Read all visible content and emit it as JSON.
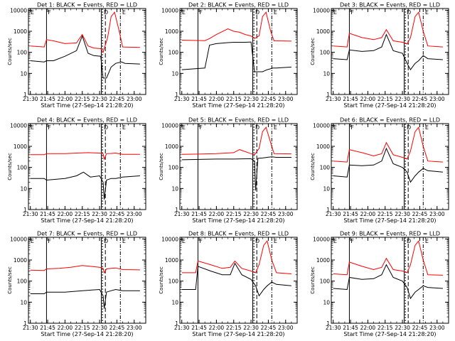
{
  "figure": {
    "xlabel_template": "Start Time (27-Sep-14 21:28:20)",
    "ylabel": "Counts/sec"
  },
  "colors": {
    "events": "#000000",
    "lld": "#ff0000"
  },
  "chart_data": [
    {
      "type": "line",
      "title": "Det 1: BLACK = Events, RED = LLD",
      "xlabel": "Start Time (27-Sep-14 21:28:20)",
      "ylabel": "Counts/sec",
      "y_scale": "log",
      "ylim": [
        1,
        12000
      ],
      "x_ticks": [
        "21:30",
        "21:45",
        "22:00",
        "22:15",
        "22:30",
        "22:45",
        "23:00"
      ],
      "y_ticks": [
        "1",
        "10",
        "100",
        "1000",
        "10000"
      ],
      "markers": [
        "E",
        "F",
        "D",
        "E"
      ],
      "series": [
        {
          "name": "Events",
          "x": [
            "21:30",
            "21:42",
            "21:44",
            "21:50",
            "22:00",
            "22:10",
            "22:15",
            "22:20",
            "22:25",
            "22:31",
            "22:33",
            "22:36",
            "22:40",
            "22:44",
            "22:49",
            "22:52",
            "23:05"
          ],
          "values": [
            40,
            35,
            40,
            40,
            65,
            120,
            600,
            90,
            70,
            65,
            6,
            6,
            20,
            30,
            35,
            30,
            28
          ]
        },
        {
          "name": "LLD",
          "x": [
            "21:30",
            "21:42",
            "21:44",
            "21:50",
            "22:00",
            "22:10",
            "22:15",
            "22:20",
            "22:25",
            "22:31",
            "22:33",
            "22:37",
            "22:40",
            "22:43",
            "22:47",
            "22:50",
            "23:05"
          ],
          "values": [
            200,
            180,
            400,
            350,
            260,
            280,
            700,
            200,
            160,
            150,
            100,
            500,
            5000,
            8000,
            1000,
            180,
            170
          ]
        }
      ]
    },
    {
      "type": "line",
      "title": "Det 2: BLACK = Events, RED = LLD",
      "xlabel": "Start Time (27-Sep-14 21:28:20)",
      "ylabel": "Counts/sec",
      "y_scale": "log",
      "ylim": [
        1,
        12000
      ],
      "x_ticks": [
        "21:30",
        "21:45",
        "22:00",
        "22:15",
        "22:30",
        "22:45",
        "23:00"
      ],
      "y_ticks": [
        "1",
        "10",
        "100",
        "1000",
        "10000"
      ],
      "markers": [
        "E",
        "F",
        "D",
        "E"
      ],
      "series": [
        {
          "name": "Events",
          "x": [
            "21:30",
            "21:50",
            "21:54",
            "22:00",
            "22:10",
            "22:15",
            "22:25",
            "22:30",
            "22:33",
            "22:36",
            "22:40",
            "22:44",
            "22:49",
            "22:52",
            "23:05"
          ],
          "values": [
            15,
            18,
            220,
            260,
            290,
            300,
            300,
            310,
            12,
            12,
            12,
            15,
            18,
            18,
            20
          ]
        },
        {
          "name": "LLD",
          "x": [
            "21:30",
            "21:50",
            "21:54",
            "22:00",
            "22:10",
            "22:15",
            "22:20",
            "22:25",
            "22:30",
            "22:33",
            "22:37",
            "22:40",
            "22:43",
            "22:47",
            "22:50",
            "23:05"
          ],
          "values": [
            380,
            360,
            450,
            700,
            1300,
            1000,
            900,
            700,
            600,
            450,
            600,
            5000,
            8000,
            1000,
            350,
            340
          ]
        }
      ]
    },
    {
      "type": "line",
      "title": "Det 3: BLACK = Events, RED = LLD",
      "xlabel": "Start Time (27-Sep-14 21:28:20)",
      "ylabel": "Counts/sec",
      "y_scale": "log",
      "ylim": [
        1,
        12000
      ],
      "x_ticks": [
        "21:30",
        "21:45",
        "22:00",
        "22:15",
        "22:30",
        "22:45",
        "23:00"
      ],
      "y_ticks": [
        "1",
        "10",
        "100",
        "1000",
        "10000"
      ],
      "markers": [
        "E",
        "F",
        "D",
        "E"
      ],
      "series": [
        {
          "name": "Events",
          "x": [
            "21:30",
            "21:42",
            "21:44",
            "21:55",
            "22:05",
            "22:12",
            "22:16",
            "22:22",
            "22:30",
            "22:34",
            "22:37",
            "22:41",
            "22:44",
            "22:48",
            "22:52",
            "23:05"
          ],
          "values": [
            50,
            45,
            130,
            110,
            120,
            180,
            700,
            120,
            90,
            30,
            15,
            30,
            40,
            70,
            50,
            45
          ]
        },
        {
          "name": "LLD",
          "x": [
            "21:30",
            "21:42",
            "21:44",
            "21:55",
            "22:05",
            "22:12",
            "22:16",
            "22:22",
            "22:30",
            "22:34",
            "22:37",
            "22:41",
            "22:44",
            "22:48",
            "22:52",
            "23:05"
          ],
          "values": [
            200,
            180,
            800,
            500,
            400,
            500,
            1200,
            350,
            300,
            250,
            500,
            5000,
            8000,
            1000,
            200,
            180
          ]
        }
      ]
    },
    {
      "type": "line",
      "title": "Det 4: BLACK = Events, RED = LLD",
      "xlabel": "Start Time (27-Sep-14 21:28:20)",
      "ylabel": "Counts/sec",
      "y_scale": "log",
      "ylim": [
        1,
        12000
      ],
      "x_ticks": [
        "21:30",
        "21:45",
        "22:00",
        "22:15",
        "22:30",
        "22:45",
        "23:00"
      ],
      "y_ticks": [
        "1",
        "10",
        "100",
        "1000",
        "10000"
      ],
      "markers": [
        "E",
        "F",
        "D",
        "E"
      ],
      "series": [
        {
          "name": "Events",
          "x": [
            "21:30",
            "21:42",
            "21:44",
            "22:00",
            "22:10",
            "22:16",
            "22:22",
            "22:30",
            "22:33",
            "22:34",
            "22:36",
            "22:40",
            "22:44",
            "22:50",
            "23:05"
          ],
          "values": [
            30,
            30,
            25,
            30,
            40,
            60,
            35,
            40,
            20,
            3,
            25,
            30,
            30,
            35,
            40
          ]
        },
        {
          "name": "LLD",
          "x": [
            "21:30",
            "21:42",
            "21:44",
            "22:00",
            "22:10",
            "22:20",
            "22:30",
            "22:33",
            "22:34",
            "22:36",
            "22:40",
            "22:44",
            "22:50",
            "23:05"
          ],
          "values": [
            400,
            400,
            450,
            450,
            480,
            500,
            480,
            450,
            250,
            450,
            460,
            480,
            420,
            420
          ]
        }
      ]
    },
    {
      "type": "line",
      "title": "Det 5: BLACK = Events, RED = LLD",
      "xlabel": "Start Time (27-Sep-14 21:28:20)",
      "ylabel": "Counts/sec",
      "y_scale": "log",
      "ylim": [
        1,
        12000
      ],
      "x_ticks": [
        "21:30",
        "21:45",
        "22:00",
        "22:15",
        "22:30",
        "22:45",
        "23:00"
      ],
      "y_ticks": [
        "1",
        "10",
        "100",
        "1000",
        "10000"
      ],
      "markers": [
        "E",
        "F",
        "D",
        "E"
      ],
      "series": [
        {
          "name": "Events",
          "x": [
            "21:30",
            "21:45",
            "22:00",
            "22:15",
            "22:30",
            "22:33",
            "22:34",
            "22:36",
            "22:40",
            "22:44",
            "22:48",
            "22:52",
            "23:05"
          ],
          "values": [
            230,
            240,
            250,
            250,
            260,
            200,
            8,
            270,
            280,
            300,
            320,
            300,
            300
          ]
        },
        {
          "name": "LLD",
          "x": [
            "21:30",
            "21:45",
            "22:00",
            "22:15",
            "22:20",
            "22:30",
            "22:33",
            "22:37",
            "22:40",
            "22:43",
            "22:47",
            "22:50",
            "23:05"
          ],
          "values": [
            420,
            430,
            450,
            500,
            700,
            450,
            400,
            800,
            5000,
            8000,
            1500,
            450,
            440
          ]
        }
      ]
    },
    {
      "type": "line",
      "title": "Det 6: BLACK = Events, RED = LLD",
      "xlabel": "Start Time (27-Sep-14 21:28:20)",
      "ylabel": "Counts/sec",
      "y_scale": "log",
      "ylim": [
        1,
        12000
      ],
      "x_ticks": [
        "21:30",
        "21:45",
        "22:00",
        "22:15",
        "22:30",
        "22:45",
        "23:00"
      ],
      "y_ticks": [
        "1",
        "10",
        "100",
        "1000",
        "10000"
      ],
      "markers": [
        "E",
        "F",
        "D",
        "E"
      ],
      "series": [
        {
          "name": "Events",
          "x": [
            "21:30",
            "21:42",
            "21:44",
            "21:55",
            "22:05",
            "22:12",
            "22:16",
            "22:22",
            "22:30",
            "22:34",
            "22:37",
            "22:41",
            "22:44",
            "22:48",
            "22:52",
            "23:05"
          ],
          "values": [
            40,
            35,
            130,
            120,
            130,
            200,
            800,
            150,
            100,
            60,
            20,
            40,
            60,
            90,
            70,
            60
          ]
        },
        {
          "name": "LLD",
          "x": [
            "21:30",
            "21:42",
            "21:44",
            "21:55",
            "22:05",
            "22:12",
            "22:16",
            "22:22",
            "22:30",
            "22:34",
            "22:37",
            "22:41",
            "22:44",
            "22:48",
            "22:52",
            "23:05"
          ],
          "values": [
            200,
            180,
            700,
            500,
            350,
            450,
            1500,
            400,
            300,
            250,
            600,
            5000,
            8000,
            1000,
            200,
            180
          ]
        }
      ]
    },
    {
      "type": "line",
      "title": "Det 7: BLACK = Events, RED = LLD",
      "xlabel": "Start Time (27-Sep-14 21:28:20)",
      "ylabel": "Counts/sec",
      "y_scale": "log",
      "ylim": [
        1,
        12000
      ],
      "x_ticks": [
        "21:30",
        "21:45",
        "22:00",
        "22:15",
        "22:30",
        "22:45",
        "23:00"
      ],
      "y_ticks": [
        "1",
        "10",
        "100",
        "1000",
        "10000"
      ],
      "markers": [
        "E",
        "F",
        "D",
        "E"
      ],
      "series": [
        {
          "name": "Events",
          "x": [
            "21:30",
            "21:42",
            "21:44",
            "22:00",
            "22:15",
            "22:30",
            "22:33",
            "22:34",
            "22:36",
            "22:40",
            "22:44",
            "22:50",
            "23:05"
          ],
          "values": [
            25,
            25,
            30,
            30,
            35,
            40,
            20,
            5,
            30,
            35,
            40,
            35,
            35
          ]
        },
        {
          "name": "LLD",
          "x": [
            "21:30",
            "21:42",
            "21:44",
            "21:55",
            "22:05",
            "22:15",
            "22:22",
            "22:30",
            "22:33",
            "22:34",
            "22:36",
            "22:40",
            "22:44",
            "22:50",
            "23:05"
          ],
          "values": [
            330,
            320,
            380,
            400,
            450,
            550,
            500,
            450,
            400,
            250,
            380,
            400,
            420,
            350,
            340
          ]
        }
      ]
    },
    {
      "type": "line",
      "title": "Det 8: BLACK = Events, RED = LLD",
      "xlabel": "Start Time (27-Sep-14 21:28:20)",
      "ylabel": "Counts/sec",
      "y_scale": "log",
      "ylim": [
        1,
        12000
      ],
      "x_ticks": [
        "21:30",
        "21:45",
        "22:00",
        "22:15",
        "22:30",
        "22:45",
        "23:00"
      ],
      "y_ticks": [
        "1",
        "10",
        "100",
        "1000",
        "10000"
      ],
      "markers": [
        "E",
        "F",
        "D",
        "E"
      ],
      "series": [
        {
          "name": "Events",
          "x": [
            "21:30",
            "21:42",
            "21:44",
            "21:55",
            "22:05",
            "22:12",
            "22:16",
            "22:22",
            "22:30",
            "22:34",
            "22:37",
            "22:41",
            "22:44",
            "22:48",
            "22:52",
            "23:05"
          ],
          "values": [
            40,
            40,
            500,
            300,
            200,
            200,
            700,
            200,
            120,
            60,
            20,
            40,
            60,
            90,
            70,
            60
          ]
        },
        {
          "name": "LLD",
          "x": [
            "21:30",
            "21:42",
            "21:44",
            "21:55",
            "22:05",
            "22:12",
            "22:16",
            "22:22",
            "22:30",
            "22:34",
            "22:37",
            "22:41",
            "22:44",
            "22:48",
            "22:52",
            "23:05"
          ],
          "values": [
            250,
            250,
            900,
            600,
            400,
            450,
            900,
            400,
            300,
            250,
            600,
            5000,
            8000,
            1000,
            250,
            220
          ]
        }
      ]
    },
    {
      "type": "line",
      "title": "Det 9: BLACK = Events, RED = LLD",
      "xlabel": "Start Time (27-Sep-14 21:28:20)",
      "ylabel": "Counts/sec",
      "y_scale": "log",
      "ylim": [
        1,
        12000
      ],
      "x_ticks": [
        "21:30",
        "21:45",
        "22:00",
        "22:15",
        "22:30",
        "22:45",
        "23:00"
      ],
      "y_ticks": [
        "1",
        "10",
        "100",
        "1000",
        "10000"
      ],
      "markers": [
        "E",
        "F",
        "D",
        "E"
      ],
      "series": [
        {
          "name": "Events",
          "x": [
            "21:30",
            "21:42",
            "21:44",
            "21:55",
            "22:05",
            "22:12",
            "22:16",
            "22:22",
            "22:30",
            "22:34",
            "22:37",
            "22:41",
            "22:44",
            "22:48",
            "22:52",
            "23:05"
          ],
          "values": [
            45,
            40,
            150,
            120,
            130,
            200,
            600,
            150,
            100,
            50,
            15,
            30,
            40,
            60,
            50,
            45
          ]
        },
        {
          "name": "LLD",
          "x": [
            "21:30",
            "21:42",
            "21:44",
            "21:55",
            "22:05",
            "22:12",
            "22:16",
            "22:22",
            "22:30",
            "22:34",
            "22:37",
            "22:41",
            "22:44",
            "22:48",
            "22:52",
            "23:05"
          ],
          "values": [
            220,
            200,
            800,
            500,
            350,
            450,
            1200,
            350,
            300,
            250,
            600,
            5000,
            8000,
            1000,
            200,
            190
          ]
        }
      ]
    }
  ]
}
